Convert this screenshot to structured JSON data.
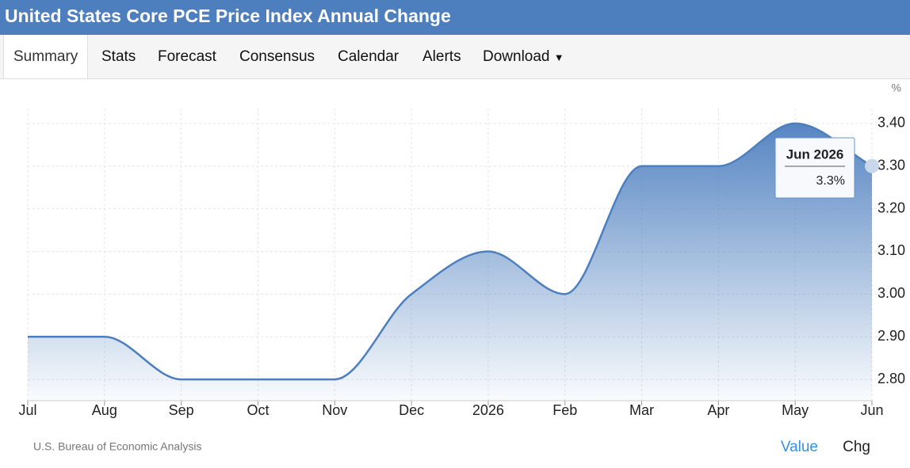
{
  "header": {
    "title": "United States Core PCE Price Index Annual Change"
  },
  "tabs": [
    "Summary",
    "Stats",
    "Forecast",
    "Consensus",
    "Calendar",
    "Alerts",
    "Download"
  ],
  "toggles": [
    "Value",
    "Chg"
  ],
  "chart_data": {
    "type": "area",
    "unit": "%",
    "source": "U.S. Bureau of Economic Analysis",
    "categories": [
      "Jul",
      "Aug",
      "Sep",
      "Oct",
      "Nov",
      "Dec",
      "2026",
      "Feb",
      "Mar",
      "Apr",
      "May",
      "Jun"
    ],
    "values": [
      2.9,
      2.9,
      2.8,
      2.8,
      2.8,
      3.0,
      3.1,
      3.0,
      3.3,
      3.3,
      3.4,
      3.3
    ],
    "color": "#4d7fbf",
    "ylim": [
      2.75,
      3.435
    ],
    "yticks": [
      {
        "value": 2.8,
        "label": "2.80"
      },
      {
        "value": 2.9,
        "label": "2.90"
      },
      {
        "value": 3.0,
        "label": "3.00"
      },
      {
        "value": 3.1,
        "label": "3.10"
      },
      {
        "value": 3.2,
        "label": "3.20"
      },
      {
        "value": 3.3,
        "label": "3.30"
      },
      {
        "value": 3.4,
        "label": "3.40"
      }
    ],
    "grid": true,
    "tooltip": {
      "title": "Jun 2026",
      "label": "3.3%"
    }
  }
}
